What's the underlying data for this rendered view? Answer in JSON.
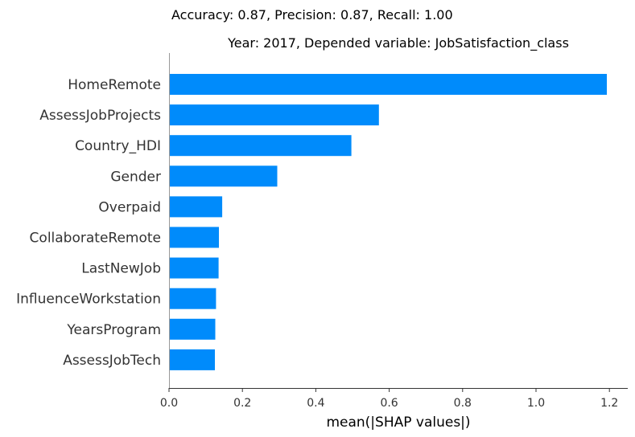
{
  "suptitle": "Accuracy: 0.87, Precision: 0.87, Recall: 1.00",
  "chart_data": {
    "type": "bar",
    "orientation": "horizontal",
    "title": "Year: 2017, Depended variable: JobSatisfaction_class",
    "xlabel": "mean(|SHAP values|)",
    "ylabel": "",
    "categories": [
      "HomeRemote",
      "AssessJobProjects",
      "Country_HDI",
      "Gender",
      "Overpaid",
      "CollaborateRemote",
      "LastNewJob",
      "InfluenceWorkstation",
      "YearsProgram",
      "AssessJobTech"
    ],
    "values": [
      1.193,
      0.572,
      0.497,
      0.295,
      0.145,
      0.136,
      0.135,
      0.128,
      0.126,
      0.125
    ],
    "xlim": [
      0,
      1.25
    ],
    "xticks": [
      0.0,
      0.2,
      0.4,
      0.6,
      0.8,
      1.0,
      1.2
    ],
    "xtick_labels": [
      "0.0",
      "0.2",
      "0.4",
      "0.6",
      "0.8",
      "1.0",
      "1.2"
    ],
    "grid": false,
    "legend": "none",
    "bar_color": "#008bfb"
  }
}
